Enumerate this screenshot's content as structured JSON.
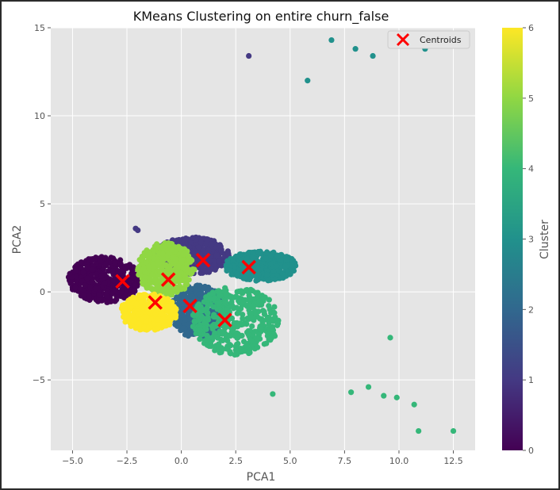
{
  "chart_data": {
    "type": "scatter",
    "title": "KMeans Clustering on entire churn_false",
    "xlabel": "PCA1",
    "ylabel": "PCA2",
    "xlim": [
      -6.0,
      13.5
    ],
    "ylim": [
      -9.0,
      15.0
    ],
    "grid": true,
    "legend": {
      "placement": "top-right",
      "entries": [
        "Centroids"
      ]
    },
    "xticks": [
      -5.0,
      -2.5,
      0.0,
      2.5,
      5.0,
      7.5,
      10.0,
      12.5
    ],
    "xtick_labels": [
      "−5.0",
      "−2.5",
      "0.0",
      "2.5",
      "5.0",
      "7.5",
      "10.0",
      "12.5"
    ],
    "yticks": [
      -5,
      0,
      5,
      10,
      15
    ],
    "ytick_labels": [
      "−5",
      "0",
      "5",
      "10",
      "15"
    ],
    "colorbar": {
      "label": "Cluster",
      "range": [
        0,
        6
      ],
      "ticks": [
        0,
        1,
        2,
        3,
        4,
        5,
        6
      ],
      "colormap": "viridis",
      "colors": [
        "#440154",
        "#443983",
        "#31688e",
        "#21918c",
        "#35b779",
        "#90d743",
        "#fde725"
      ]
    },
    "cluster_colors": {
      "0": "#440154",
      "1": "#443983",
      "2": "#31688e",
      "3": "#21918c",
      "4": "#35b779",
      "5": "#90d743",
      "6": "#fde725"
    },
    "cluster_regions": [
      {
        "cluster": 0,
        "x_range": [
          -5.2,
          -1.8
        ],
        "y_range": [
          -0.6,
          2.0
        ]
      },
      {
        "cluster": 1,
        "x_range": [
          -1.2,
          2.2
        ],
        "y_range": [
          1.0,
          3.1
        ]
      },
      {
        "cluster": 2,
        "x_range": [
          -0.5,
          2.0
        ],
        "y_range": [
          -2.6,
          0.4
        ]
      },
      {
        "cluster": 3,
        "x_range": [
          2.0,
          5.3
        ],
        "y_range": [
          0.6,
          2.3
        ]
      },
      {
        "cluster": 4,
        "x_range": [
          0.5,
          4.5
        ],
        "y_range": [
          -3.6,
          0.3
        ]
      },
      {
        "cluster": 5,
        "x_range": [
          -2.0,
          0.6
        ],
        "y_range": [
          -0.2,
          2.8
        ]
      },
      {
        "cluster": 6,
        "x_range": [
          -2.8,
          -0.2
        ],
        "y_range": [
          -2.2,
          -0.1
        ]
      }
    ],
    "outliers": [
      {
        "x": 3.1,
        "y": 13.4,
        "cluster": 1
      },
      {
        "x": 6.9,
        "y": 14.3,
        "cluster": 3
      },
      {
        "x": 8.0,
        "y": 13.8,
        "cluster": 3
      },
      {
        "x": 8.8,
        "y": 13.4,
        "cluster": 3
      },
      {
        "x": 11.2,
        "y": 13.8,
        "cluster": 3
      },
      {
        "x": 5.8,
        "y": 12.0,
        "cluster": 3
      },
      {
        "x": -2.1,
        "y": 3.6,
        "cluster": 1
      },
      {
        "x": -2.0,
        "y": 3.5,
        "cluster": 1
      },
      {
        "x": 9.6,
        "y": -2.6,
        "cluster": 4
      },
      {
        "x": 4.2,
        "y": -5.8,
        "cluster": 4
      },
      {
        "x": 7.8,
        "y": -5.7,
        "cluster": 4
      },
      {
        "x": 8.6,
        "y": -5.4,
        "cluster": 4
      },
      {
        "x": 9.3,
        "y": -5.9,
        "cluster": 4
      },
      {
        "x": 9.9,
        "y": -6.0,
        "cluster": 4
      },
      {
        "x": 10.7,
        "y": -6.4,
        "cluster": 4
      },
      {
        "x": 10.9,
        "y": -7.9,
        "cluster": 4
      },
      {
        "x": 12.5,
        "y": -7.9,
        "cluster": 4
      }
    ],
    "centroids": [
      {
        "x": -2.7,
        "y": 0.6
      },
      {
        "x": 1.0,
        "y": 1.8
      },
      {
        "x": 3.1,
        "y": 1.4
      },
      {
        "x": -0.6,
        "y": 0.7
      },
      {
        "x": -1.2,
        "y": -0.6
      },
      {
        "x": 0.4,
        "y": -0.8
      },
      {
        "x": 2.0,
        "y": -1.6
      }
    ]
  }
}
